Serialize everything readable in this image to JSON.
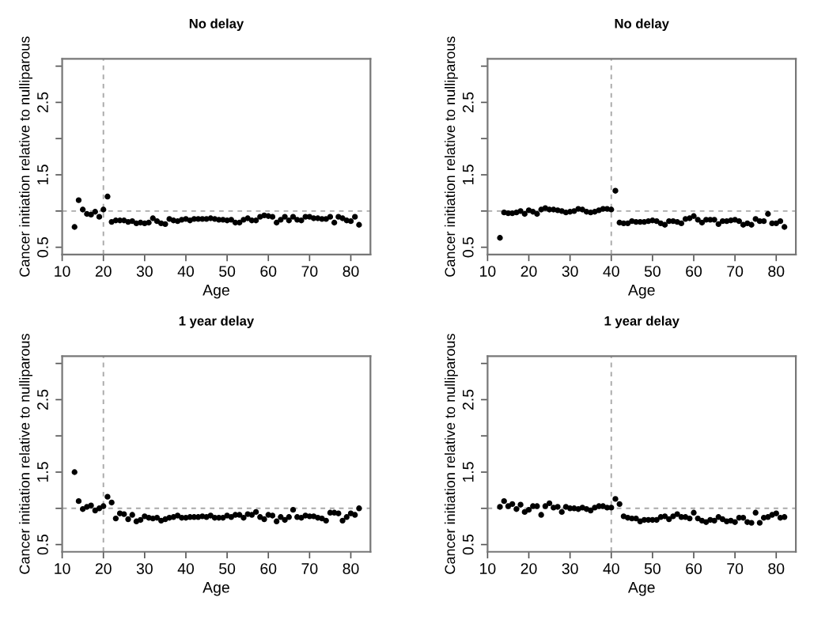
{
  "chart_data": [
    {
      "type": "scatter",
      "title": "No delay",
      "xlabel": "Age",
      "ylabel": "Cancer initiation relative to nulliparous",
      "marker": "circle",
      "grid": false,
      "x": [
        13,
        14,
        15,
        16,
        17,
        18,
        19,
        20,
        21,
        22,
        23,
        24,
        25,
        26,
        27,
        28,
        29,
        30,
        31,
        32,
        33,
        34,
        35,
        36,
        37,
        38,
        39,
        40,
        41,
        42,
        43,
        44,
        45,
        46,
        47,
        48,
        49,
        50,
        51,
        52,
        53,
        54,
        55,
        56,
        57,
        58,
        59,
        60,
        61,
        62,
        63,
        64,
        65,
        66,
        67,
        68,
        69,
        70,
        71,
        72,
        73,
        74,
        75,
        76,
        77,
        78,
        79,
        80,
        81,
        82
      ],
      "series": [
        {
          "color": "#000000",
          "values": [
            0.78,
            1.15,
            1.02,
            0.96,
            0.95,
            0.99,
            0.92,
            1.02,
            1.2,
            0.85,
            0.87,
            0.87,
            0.87,
            0.85,
            0.86,
            0.83,
            0.84,
            0.83,
            0.84,
            0.9,
            0.86,
            0.83,
            0.82,
            0.89,
            0.87,
            0.86,
            0.88,
            0.89,
            0.87,
            0.89,
            0.89,
            0.89,
            0.89,
            0.9,
            0.89,
            0.88,
            0.88,
            0.87,
            0.88,
            0.84,
            0.84,
            0.88,
            0.9,
            0.87,
            0.87,
            0.92,
            0.94,
            0.93,
            0.92,
            0.84,
            0.88,
            0.92,
            0.87,
            0.92,
            0.88,
            0.87,
            0.92,
            0.92,
            0.9,
            0.9,
            0.89,
            0.89,
            0.92,
            0.84,
            0.92,
            0.9,
            0.87,
            0.86,
            0.92,
            0.81
          ]
        }
      ],
      "xlim": [
        10,
        84.76
      ],
      "xticks": [
        10,
        20,
        30,
        40,
        50,
        60,
        70,
        80
      ],
      "ylim": [
        0.4,
        3.1
      ],
      "yticks": [
        0.5,
        {
          "value": 1.0,
          "label": null
        },
        1.5,
        {
          "value": 2.0,
          "label": null
        },
        2.5,
        {
          "value": 3.0,
          "label": null
        }
      ],
      "ref_lines": [
        {
          "axis": "y",
          "value": 1.0,
          "color": "#aaaaaa",
          "line_style": "dashed"
        },
        {
          "axis": "x",
          "value": 20,
          "color": "#aaaaaa",
          "line_style": "dashed"
        }
      ]
    },
    {
      "type": "scatter",
      "title": "No delay",
      "xlabel": "Age",
      "ylabel": "Cancer initiation relative to nulliparous",
      "marker": "circle",
      "grid": false,
      "x": [
        13,
        14,
        15,
        16,
        17,
        18,
        19,
        20,
        21,
        22,
        23,
        24,
        25,
        26,
        27,
        28,
        29,
        30,
        31,
        32,
        33,
        34,
        35,
        36,
        37,
        38,
        39,
        40,
        41,
        42,
        43,
        44,
        45,
        46,
        47,
        48,
        49,
        50,
        51,
        52,
        53,
        54,
        55,
        56,
        57,
        58,
        59,
        60,
        61,
        62,
        63,
        64,
        65,
        66,
        67,
        68,
        69,
        70,
        71,
        72,
        73,
        74,
        75,
        76,
        77,
        78,
        79,
        80,
        81,
        82
      ],
      "series": [
        {
          "color": "#000000",
          "values": [
            0.63,
            0.98,
            0.97,
            0.97,
            0.98,
            1.0,
            0.96,
            1.01,
            0.99,
            0.96,
            1.02,
            1.04,
            1.02,
            1.02,
            1.01,
            1.0,
            0.98,
            0.99,
            1.0,
            1.03,
            1.02,
            0.99,
            0.98,
            0.99,
            1.01,
            1.03,
            1.03,
            1.02,
            1.28,
            0.84,
            0.83,
            0.83,
            0.86,
            0.85,
            0.85,
            0.85,
            0.86,
            0.87,
            0.86,
            0.83,
            0.81,
            0.86,
            0.86,
            0.85,
            0.83,
            0.89,
            0.9,
            0.93,
            0.88,
            0.84,
            0.88,
            0.88,
            0.88,
            0.82,
            0.86,
            0.86,
            0.87,
            0.88,
            0.86,
            0.81,
            0.83,
            0.81,
            0.89,
            0.86,
            0.86,
            0.96,
            0.83,
            0.83,
            0.86,
            0.78
          ]
        }
      ],
      "xlim": [
        10,
        84.76
      ],
      "xticks": [
        10,
        20,
        30,
        40,
        50,
        60,
        70,
        80
      ],
      "ylim": [
        0.4,
        3.1
      ],
      "yticks": [
        0.5,
        {
          "value": 1.0,
          "label": null
        },
        1.5,
        {
          "value": 2.0,
          "label": null
        },
        2.5,
        {
          "value": 3.0,
          "label": null
        }
      ],
      "ref_lines": [
        {
          "axis": "y",
          "value": 1.0,
          "color": "#aaaaaa",
          "line_style": "dashed"
        },
        {
          "axis": "x",
          "value": 40,
          "color": "#aaaaaa",
          "line_style": "dashed"
        }
      ]
    },
    {
      "type": "scatter",
      "title": "1 year delay",
      "xlabel": "Age",
      "ylabel": "Cancer initiation relative to nulliparous",
      "marker": "circle",
      "grid": false,
      "x": [
        13,
        14,
        15,
        16,
        17,
        18,
        19,
        20,
        21,
        22,
        23,
        24,
        25,
        26,
        27,
        28,
        29,
        30,
        31,
        32,
        33,
        34,
        35,
        36,
        37,
        38,
        39,
        40,
        41,
        42,
        43,
        44,
        45,
        46,
        47,
        48,
        49,
        50,
        51,
        52,
        53,
        54,
        55,
        56,
        57,
        58,
        59,
        60,
        61,
        62,
        63,
        64,
        65,
        66,
        67,
        68,
        69,
        70,
        71,
        72,
        73,
        74,
        75,
        76,
        77,
        78,
        79,
        80,
        81,
        82
      ],
      "series": [
        {
          "color": "#000000",
          "values": [
            1.5,
            1.1,
            0.99,
            1.02,
            1.04,
            0.97,
            1.0,
            1.03,
            1.16,
            1.08,
            0.86,
            0.93,
            0.92,
            0.85,
            0.91,
            0.82,
            0.84,
            0.89,
            0.87,
            0.86,
            0.87,
            0.83,
            0.85,
            0.87,
            0.88,
            0.9,
            0.87,
            0.87,
            0.88,
            0.88,
            0.88,
            0.89,
            0.88,
            0.9,
            0.87,
            0.87,
            0.87,
            0.9,
            0.88,
            0.91,
            0.91,
            0.87,
            0.92,
            0.91,
            0.95,
            0.88,
            0.85,
            0.91,
            0.9,
            0.82,
            0.88,
            0.84,
            0.88,
            0.98,
            0.88,
            0.87,
            0.9,
            0.89,
            0.89,
            0.87,
            0.86,
            0.83,
            0.94,
            0.94,
            0.93,
            0.83,
            0.88,
            0.93,
            0.91,
            1.0
          ]
        }
      ],
      "xlim": [
        10,
        84.76
      ],
      "xticks": [
        10,
        20,
        30,
        40,
        50,
        60,
        70,
        80
      ],
      "ylim": [
        0.4,
        3.1
      ],
      "yticks": [
        0.5,
        {
          "value": 1.0,
          "label": null
        },
        1.5,
        {
          "value": 2.0,
          "label": null
        },
        2.5,
        {
          "value": 3.0,
          "label": null
        }
      ],
      "ref_lines": [
        {
          "axis": "y",
          "value": 1.0,
          "color": "#aaaaaa",
          "line_style": "dashed"
        },
        {
          "axis": "x",
          "value": 20,
          "color": "#aaaaaa",
          "line_style": "dashed"
        }
      ]
    },
    {
      "type": "scatter",
      "title": "1 year delay",
      "xlabel": "Age",
      "ylabel": "Cancer initiation relative to nulliparous",
      "marker": "circle",
      "grid": false,
      "x": [
        13,
        14,
        15,
        16,
        17,
        18,
        19,
        20,
        21,
        22,
        23,
        24,
        25,
        26,
        27,
        28,
        29,
        30,
        31,
        32,
        33,
        34,
        35,
        36,
        37,
        38,
        39,
        40,
        41,
        42,
        43,
        44,
        45,
        46,
        47,
        48,
        49,
        50,
        51,
        52,
        53,
        54,
        55,
        56,
        57,
        58,
        59,
        60,
        61,
        62,
        63,
        64,
        65,
        66,
        67,
        68,
        69,
        70,
        71,
        72,
        73,
        74,
        75,
        76,
        77,
        78,
        79,
        80,
        81,
        82
      ],
      "series": [
        {
          "color": "#000000",
          "values": [
            1.02,
            1.1,
            1.03,
            1.06,
            0.99,
            1.05,
            0.95,
            0.98,
            1.03,
            1.03,
            0.91,
            1.03,
            1.07,
            1.01,
            1.02,
            0.95,
            1.02,
            1.0,
            1.0,
            0.99,
            1.01,
            0.99,
            0.97,
            1.01,
            1.03,
            1.03,
            1.01,
            1.01,
            1.13,
            1.06,
            0.89,
            0.87,
            0.86,
            0.86,
            0.82,
            0.84,
            0.84,
            0.84,
            0.84,
            0.88,
            0.89,
            0.85,
            0.89,
            0.92,
            0.88,
            0.88,
            0.86,
            0.94,
            0.86,
            0.83,
            0.81,
            0.84,
            0.83,
            0.88,
            0.85,
            0.82,
            0.83,
            0.81,
            0.87,
            0.87,
            0.81,
            0.8,
            0.94,
            0.8,
            0.87,
            0.88,
            0.91,
            0.93,
            0.87,
            0.88
          ]
        }
      ],
      "xlim": [
        10,
        84.76
      ],
      "xticks": [
        10,
        20,
        30,
        40,
        50,
        60,
        70,
        80
      ],
      "ylim": [
        0.4,
        3.1
      ],
      "yticks": [
        0.5,
        {
          "value": 1.0,
          "label": null
        },
        1.5,
        {
          "value": 2.0,
          "label": null
        },
        2.5,
        {
          "value": 3.0,
          "label": null
        }
      ],
      "ref_lines": [
        {
          "axis": "y",
          "value": 1.0,
          "color": "#aaaaaa",
          "line_style": "dashed"
        },
        {
          "axis": "x",
          "value": 40,
          "color": "#aaaaaa",
          "line_style": "dashed"
        }
      ]
    }
  ]
}
